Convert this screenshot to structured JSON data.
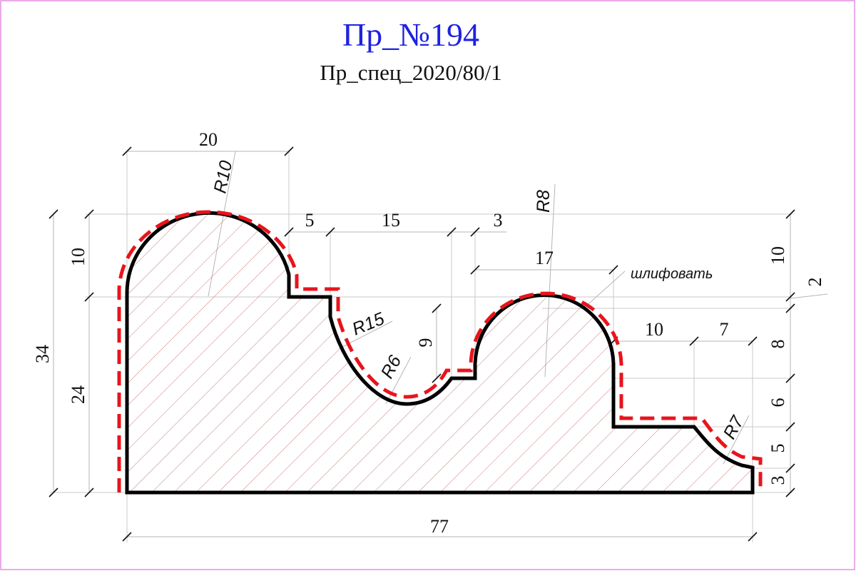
{
  "title": "Пр_№194",
  "subtitle": "Пр_спец_2020/80/1",
  "note": "шлифовать",
  "colors": {
    "title": "#1e22e0",
    "profile": "#000000",
    "sanding_line": "#e8141c",
    "hatch": "#c87d7d",
    "frame": "#e38fe3"
  },
  "dimensions": {
    "top_width": "20",
    "step_5": "5",
    "span_15": "15",
    "step_3": "3",
    "span_17": "17",
    "span_10": "10",
    "span_7": "7",
    "total_width": "77",
    "left_total_height": "34",
    "left_upper_height": "10",
    "left_lower_height": "24",
    "right_10": "10",
    "right_2": "2",
    "right_8": "8",
    "right_6": "6",
    "right_5": "5",
    "right_3": "3",
    "groove_9": "9"
  },
  "radii": {
    "r10": "R10",
    "r15": "R15",
    "r6": "R6",
    "r8": "R8",
    "r7": "R7"
  }
}
